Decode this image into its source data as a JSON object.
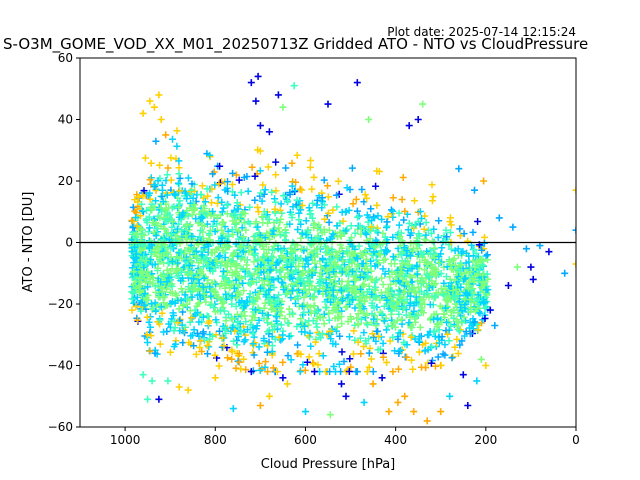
{
  "chart_data": {
    "type": "scatter",
    "plot_date": "Plot date: 2025-07-14 12:15:24",
    "title": "S-O3M_GOME_VOD_XX_M01_20250713Z Gridded ATO - NTO vs CloudPressure",
    "xlabel": "Cloud Pressure [hPa]",
    "ylabel": "ATO - NTO [DU]",
    "xlim": [
      1100,
      0
    ],
    "ylim": [
      -60,
      60
    ],
    "x_ticks": [
      1000,
      800,
      600,
      400,
      200,
      0
    ],
    "y_ticks": [
      -60,
      -40,
      -20,
      0,
      20,
      40,
      60
    ],
    "reference_line_y": 0,
    "marker": "+",
    "colors": {
      "dense_core": "#7dff7a",
      "mid": "#3dffc0",
      "cyan": "#00d4ff",
      "light_blue": "#00a8ff",
      "blue": "#0000e0",
      "yellow": "#ffd000",
      "orange": "#ffaa00"
    },
    "cloud_envelope": {
      "x": [
        980,
        950,
        900,
        850,
        800,
        700,
        600,
        500,
        400,
        300,
        250,
        200
      ],
      "y_min": [
        -22,
        -35,
        -38,
        -38,
        -40,
        -42,
        -42,
        -42,
        -42,
        -40,
        -35,
        -25
      ],
      "y_max": [
        15,
        30,
        38,
        34,
        32,
        30,
        28,
        25,
        22,
        18,
        10,
        5
      ]
    },
    "outliers": [
      {
        "x": 960,
        "y": 42,
        "color": "#ffd000"
      },
      {
        "x": 945,
        "y": 46,
        "color": "#ffd000"
      },
      {
        "x": 935,
        "y": 44,
        "color": "#ffd000"
      },
      {
        "x": 925,
        "y": 48,
        "color": "#ffd000"
      },
      {
        "x": 920,
        "y": 40,
        "color": "#ffd000"
      },
      {
        "x": 910,
        "y": 35,
        "color": "#ffaa00"
      },
      {
        "x": 720,
        "y": 52,
        "color": "#0000e0"
      },
      {
        "x": 705,
        "y": 54,
        "color": "#0000e0"
      },
      {
        "x": 710,
        "y": 46,
        "color": "#0000e0"
      },
      {
        "x": 660,
        "y": 48,
        "color": "#0000e0"
      },
      {
        "x": 625,
        "y": 51,
        "color": "#3dffc0"
      },
      {
        "x": 650,
        "y": 44,
        "color": "#7dff7a"
      },
      {
        "x": 485,
        "y": 52,
        "color": "#0000e0"
      },
      {
        "x": 550,
        "y": 45,
        "color": "#0000e0"
      },
      {
        "x": 340,
        "y": 45,
        "color": "#7dff7a"
      },
      {
        "x": 350,
        "y": 40,
        "color": "#0000e0"
      },
      {
        "x": 370,
        "y": 38,
        "color": "#0000e0"
      },
      {
        "x": 460,
        "y": 40,
        "color": "#7dff7a"
      },
      {
        "x": 700,
        "y": 38,
        "color": "#0000e0"
      },
      {
        "x": 680,
        "y": 36,
        "color": "#0000e0"
      },
      {
        "x": 260,
        "y": 24,
        "color": "#00a8ff"
      },
      {
        "x": 225,
        "y": 17,
        "color": "#00a8ff"
      },
      {
        "x": 205,
        "y": 20,
        "color": "#ffaa00"
      },
      {
        "x": 170,
        "y": 8,
        "color": "#00a8ff"
      },
      {
        "x": 140,
        "y": 5,
        "color": "#00a8ff"
      },
      {
        "x": 110,
        "y": -2,
        "color": "#00a8ff"
      },
      {
        "x": 60,
        "y": -3,
        "color": "#0000e0"
      },
      {
        "x": 80,
        "y": -1,
        "color": "#00a8ff"
      },
      {
        "x": 25,
        "y": -10,
        "color": "#00a8ff"
      },
      {
        "x": 0,
        "y": 4,
        "color": "#00a8ff"
      },
      {
        "x": 0,
        "y": 17,
        "color": "#ffd000"
      },
      {
        "x": 0,
        "y": -7,
        "color": "#ffd000"
      },
      {
        "x": 100,
        "y": -8,
        "color": "#0000e0"
      },
      {
        "x": 95,
        "y": -12,
        "color": "#0000e0"
      },
      {
        "x": 130,
        "y": -8,
        "color": "#7dff7a"
      },
      {
        "x": 150,
        "y": -14,
        "color": "#0000e0"
      },
      {
        "x": 190,
        "y": -22,
        "color": "#0000e0"
      },
      {
        "x": 180,
        "y": -27,
        "color": "#00a8ff"
      },
      {
        "x": 210,
        "y": -38,
        "color": "#7dff7a"
      },
      {
        "x": 200,
        "y": -40,
        "color": "#ffd000"
      },
      {
        "x": 220,
        "y": -45,
        "color": "#00d4ff"
      },
      {
        "x": 250,
        "y": -43,
        "color": "#0000e0"
      },
      {
        "x": 240,
        "y": -53,
        "color": "#0000e0"
      },
      {
        "x": 280,
        "y": -50,
        "color": "#00d4ff"
      },
      {
        "x": 300,
        "y": -55,
        "color": "#ffaa00"
      },
      {
        "x": 330,
        "y": -58,
        "color": "#ffaa00"
      },
      {
        "x": 360,
        "y": -55,
        "color": "#ffaa00"
      },
      {
        "x": 380,
        "y": -50,
        "color": "#ffaa00"
      },
      {
        "x": 395,
        "y": -52,
        "color": "#ffaa00"
      },
      {
        "x": 415,
        "y": -55,
        "color": "#ffaa00"
      },
      {
        "x": 470,
        "y": -52,
        "color": "#00d4ff"
      },
      {
        "x": 510,
        "y": -50,
        "color": "#0000e0"
      },
      {
        "x": 545,
        "y": -56,
        "color": "#7dff7a"
      },
      {
        "x": 600,
        "y": -55,
        "color": "#00d4ff"
      },
      {
        "x": 680,
        "y": -50,
        "color": "#ffd000"
      },
      {
        "x": 700,
        "y": -53,
        "color": "#ffaa00"
      },
      {
        "x": 760,
        "y": -54,
        "color": "#00d4ff"
      },
      {
        "x": 860,
        "y": -48,
        "color": "#ffd000"
      },
      {
        "x": 925,
        "y": -51,
        "color": "#0000e0"
      },
      {
        "x": 940,
        "y": -45,
        "color": "#3dffc0"
      },
      {
        "x": 950,
        "y": -51,
        "color": "#3dffc0"
      },
      {
        "x": 960,
        "y": -43,
        "color": "#3dffc0"
      },
      {
        "x": 905,
        "y": -45,
        "color": "#3dffc0"
      },
      {
        "x": 880,
        "y": -47,
        "color": "#ffd000"
      },
      {
        "x": 800,
        "y": -44,
        "color": "#ffd000"
      },
      {
        "x": 640,
        "y": -46,
        "color": "#ffd000"
      },
      {
        "x": 450,
        "y": -46,
        "color": "#ffaa00"
      },
      {
        "x": 430,
        "y": -44,
        "color": "#0000e0"
      },
      {
        "x": 650,
        "y": -44,
        "color": "#0000e0"
      },
      {
        "x": 720,
        "y": -42,
        "color": "#0000e0"
      },
      {
        "x": 580,
        "y": -42,
        "color": "#0000e0"
      },
      {
        "x": 520,
        "y": -46,
        "color": "#0000e0"
      },
      {
        "x": 420,
        "y": -39,
        "color": "#ffd000"
      }
    ]
  }
}
